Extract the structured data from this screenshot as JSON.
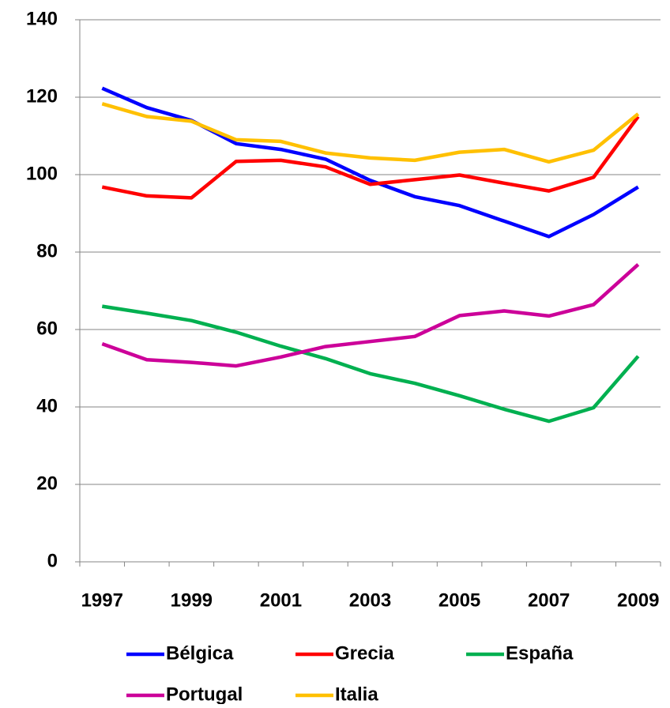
{
  "chart_data": {
    "type": "line",
    "categories": [
      "1997",
      null,
      "1999",
      null,
      "2001",
      null,
      "2003",
      null,
      "2005",
      null,
      "2007",
      null,
      "2009"
    ],
    "ylim": [
      0,
      140
    ],
    "yticks": [
      0,
      20,
      40,
      60,
      80,
      100,
      120,
      140
    ],
    "grid": true,
    "series": [
      {
        "name": "Bélgica",
        "color": "#0000ff",
        "values": [
          122.3,
          117.3,
          114,
          108,
          106.5,
          104,
          98.5,
          94.3,
          92,
          88,
          84,
          89.7,
          96.8
        ]
      },
      {
        "name": "Grecia",
        "color": "#ff0000",
        "values": [
          96.8,
          94.5,
          94,
          103.4,
          103.7,
          102,
          97.5,
          98.7,
          99.9,
          97.8,
          95.8,
          99.3,
          115
        ]
      },
      {
        "name": "España",
        "color": "#00b050",
        "values": [
          66,
          64.2,
          62.3,
          59.3,
          55.7,
          52.5,
          48.6,
          46.1,
          42.9,
          39.4,
          36.3,
          39.8,
          53.1
        ]
      },
      {
        "name": "Portugal",
        "color": "#cc0099",
        "values": [
          56.3,
          52.2,
          51.5,
          50.6,
          52.9,
          55.6,
          56.9,
          58.2,
          63.6,
          64.8,
          63.5,
          66.4,
          76.8
        ]
      },
      {
        "name": "Italia",
        "color": "#ffc000",
        "values": [
          118.3,
          115,
          113.8,
          109,
          108.6,
          105.6,
          104.3,
          103.7,
          105.8,
          106.5,
          103.3,
          106.3,
          115.7
        ]
      }
    ]
  }
}
